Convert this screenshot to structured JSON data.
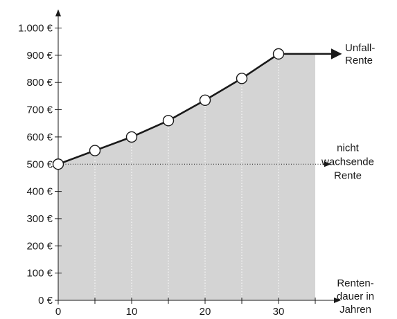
{
  "chart_data": {
    "type": "area",
    "x": [
      0,
      5,
      10,
      15,
      20,
      25,
      30
    ],
    "series": [
      {
        "name": "Unfall-Rente",
        "values": [
          500,
          550,
          600,
          660,
          735,
          815,
          905
        ]
      }
    ],
    "flat_series": {
      "name": "nicht wachsende Rente",
      "value": 500
    },
    "shaded_range": [
      0,
      35
    ],
    "after_last_value": 905,
    "xlim": [
      0,
      35
    ],
    "ylim": [
      0,
      1000
    ],
    "x_ticks": [
      0,
      10,
      20,
      30
    ],
    "y_ticks": [
      0,
      100,
      200,
      300,
      400,
      500,
      600,
      700,
      800,
      900,
      1000
    ],
    "x_tick_labels": [
      "0",
      "10",
      "20",
      "30"
    ],
    "y_tick_labels": [
      "0 €",
      "100 €",
      "200 €",
      "300 €",
      "400 €",
      "500 €",
      "600 €",
      "700 €",
      "800 €",
      "900 €",
      "1.000 €"
    ],
    "xlabel_lines": [
      "Renten-",
      "dauer in",
      "Jahren"
    ],
    "series_label_lines": [
      "Unfall-",
      "Rente"
    ],
    "flat_label_lines": [
      "nicht",
      "wachsende",
      "Rente"
    ],
    "grid": "vertical dotted lines at x = 5, 10, 15, 20, 25, 30",
    "colors": {
      "fill": "#d4d4d4",
      "line": "#1a1a1a",
      "gridline": "#ffffff"
    }
  }
}
